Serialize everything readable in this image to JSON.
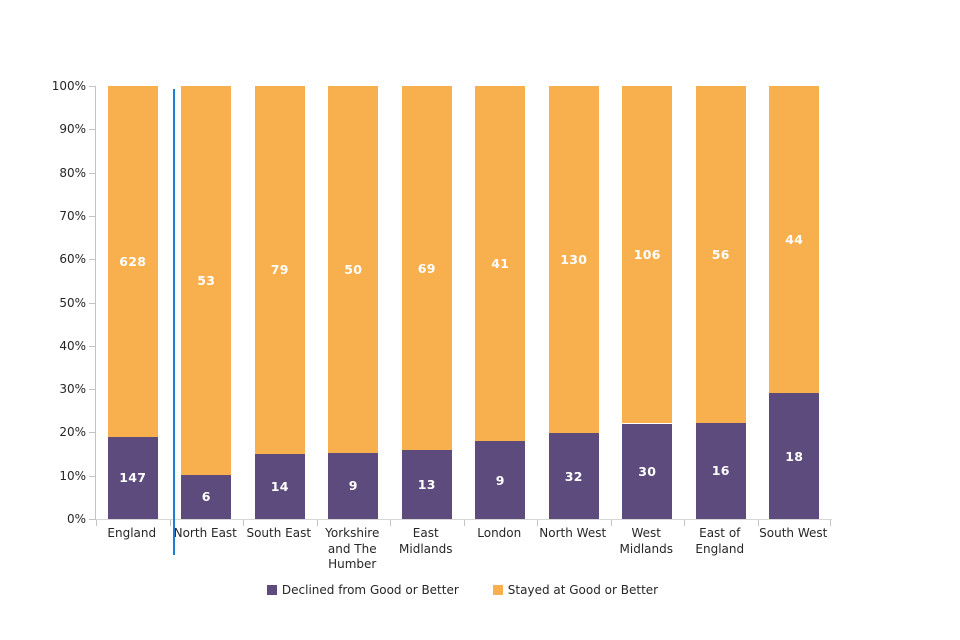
{
  "page": {
    "background": "#ffffff"
  },
  "chart_data": {
    "type": "bar",
    "stacked": true,
    "percent_axis": true,
    "grid": "off",
    "legend_position": "bottom",
    "categories": [
      "England",
      "North East",
      "South East",
      "Yorkshire\nand The\nHumber",
      "East\nMidlands",
      "London",
      "North West",
      "West\nMidlands",
      "East of\nEngland",
      "South West"
    ],
    "series": [
      {
        "name": "Declined from Good or Better",
        "color": "#5c4b7c",
        "values": [
          147,
          6,
          14,
          9,
          13,
          9,
          32,
          30,
          16,
          18
        ]
      },
      {
        "name": "Stayed at Good or Better",
        "color": "#f8af4d",
        "values": [
          628,
          53,
          79,
          50,
          69,
          41,
          130,
          106,
          56,
          44
        ]
      }
    ],
    "y_ticks": [
      "0%",
      "10%",
      "20%",
      "30%",
      "40%",
      "50%",
      "60%",
      "70%",
      "80%",
      "90%",
      "100%"
    ],
    "ylim": [
      0,
      100
    ],
    "separator": {
      "after_category": "England",
      "color": "#1e7fd0"
    },
    "axis_color": "#c3c3c3",
    "value_label_color": "#ffffff"
  }
}
